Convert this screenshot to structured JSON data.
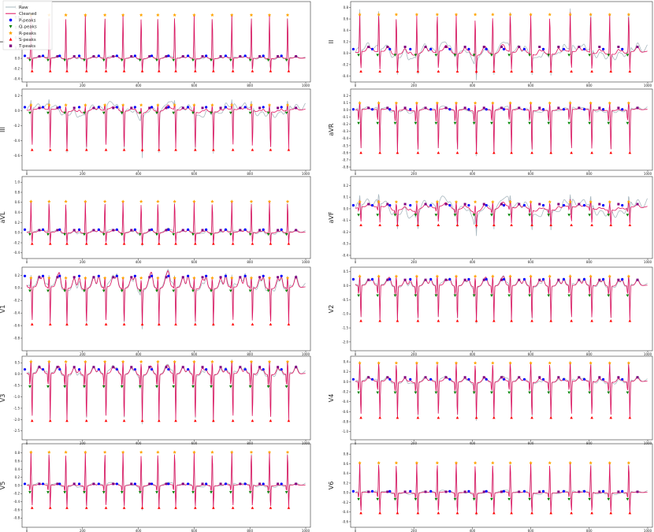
{
  "chart_data": {
    "type": "line",
    "beats_x": [
      15,
      80,
      140,
      210,
      280,
      345,
      410,
      470,
      530,
      600,
      665,
      735,
      805,
      870,
      935
    ],
    "legend": {
      "placement": "top-left",
      "entries": [
        {
          "label": "Raw",
          "color": "#a9b8bf",
          "kind": "line"
        },
        {
          "label": "Cleaned",
          "color": "#e0115f",
          "kind": "line"
        },
        {
          "label": "P-peaks",
          "color": "#0000ff",
          "kind": "marker",
          "shape": "circle"
        },
        {
          "label": "Q-peaks",
          "color": "#008000",
          "kind": "marker",
          "shape": "triangle-down"
        },
        {
          "label": "R-peaks",
          "color": "#ffa500",
          "kind": "marker",
          "shape": "star"
        },
        {
          "label": "S-peaks",
          "color": "#ff0000",
          "kind": "marker",
          "shape": "triangle-up"
        },
        {
          "label": "T-peaks",
          "color": "#800080",
          "kind": "marker",
          "shape": "square"
        }
      ]
    },
    "xlim": [
      0,
      1000
    ],
    "xticks": [
      "0",
      "200",
      "400",
      "600",
      "800",
      "1000"
    ],
    "panels": [
      {
        "lead": "I",
        "ylim": [
          -0.4,
          1.05
        ],
        "yticks": [
          "-0.4",
          "-0.2",
          "0.0",
          "0.2",
          "0.4",
          "0.6",
          "0.8",
          "1.0"
        ],
        "r": 0.85,
        "s": -0.25,
        "p": 0.04,
        "t": 0.03,
        "q": -0.05,
        "noise": 0.02
      },
      {
        "lead": "II",
        "ylim": [
          -0.45,
          0.85
        ],
        "yticks": [
          "-0.4",
          "-0.2",
          "0.0",
          "0.2",
          "0.4",
          "0.6",
          "0.8"
        ],
        "r": 0.68,
        "s": -0.32,
        "p": 0.06,
        "t": 0.1,
        "q": -0.05,
        "noise": 0.1
      },
      {
        "lead": "III",
        "ylim": [
          -0.75,
          0.25
        ],
        "yticks": [
          "-0.6",
          "-0.4",
          "-0.2",
          "0.0",
          "0.2"
        ],
        "r": 0.08,
        "s": -0.52,
        "p": 0.04,
        "t": 0.03,
        "q": -0.02,
        "noise": 0.07
      },
      {
        "lead": "aVR",
        "ylim": [
          -0.8,
          0.25
        ],
        "yticks": [
          "-0.8",
          "-0.7",
          "-0.6",
          "-0.5",
          "-0.4",
          "-0.3",
          "-0.2",
          "-0.1",
          "0.0",
          "0.1",
          "0.2"
        ],
        "r": 0.1,
        "s": -0.6,
        "p": 0.0,
        "t": 0.02,
        "q": -0.65,
        "noise": 0.03
      },
      {
        "lead": "aVL",
        "ylim": [
          -0.45,
          1.05
        ],
        "yticks": [
          "-0.4",
          "-0.2",
          "0.0",
          "0.2",
          "0.4",
          "0.6",
          "0.8",
          "1.0"
        ],
        "r": 0.62,
        "s": -0.22,
        "p": 0.05,
        "t": 0.04,
        "q": -0.05,
        "noise": 0.03
      },
      {
        "lead": "aVF",
        "ylim": [
          -0.4,
          0.25
        ],
        "yticks": [
          "-0.4",
          "-0.3",
          "-0.2",
          "-0.1",
          "0.0",
          "0.1",
          "0.2"
        ],
        "r": 0.06,
        "s": -0.14,
        "p": 0.02,
        "t": 0.03,
        "q": -0.13,
        "noise": 0.06
      },
      {
        "lead": "V1",
        "ylim": [
          -0.95,
          0.28
        ],
        "yticks": [
          "-0.8",
          "-0.6",
          "-0.4",
          "-0.2",
          "0.0",
          "0.2"
        ],
        "r": 0.16,
        "s": -0.58,
        "p": 0.18,
        "t": 0.16,
        "q": -0.1,
        "noise": 0.05
      },
      {
        "lead": "V2",
        "ylim": [
          -2.2,
          0.55
        ],
        "yticks": [
          "-2.0",
          "-1.5",
          "-1.0",
          "-0.5",
          "0.0",
          "0.5"
        ],
        "r": 0.34,
        "s": -1.25,
        "p": 0.22,
        "t": 0.2,
        "q": -1.3,
        "noise": 0.06
      },
      {
        "lead": "V3",
        "ylim": [
          -2.75,
          0.65
        ],
        "yticks": [
          "-2.5",
          "-2.0",
          "-1.5",
          "-1.0",
          "-0.5",
          "0.0",
          "0.5"
        ],
        "r": 0.55,
        "s": -2.05,
        "p": 0.2,
        "t": 0.3,
        "q": -2.1,
        "noise": 0.1
      },
      {
        "lead": "V4",
        "ylim": [
          -1.1,
          0.45
        ],
        "yticks": [
          "-1.0",
          "-0.8",
          "-0.6",
          "-0.4",
          "-0.2",
          "0.0",
          "0.2",
          "0.4"
        ],
        "r": 0.38,
        "s": -0.72,
        "p": 0.04,
        "t": 0.08,
        "q": -0.78,
        "noise": 0.04
      },
      {
        "lead": "V5",
        "ylim": [
          -0.95,
          0.95
        ],
        "yticks": [
          "-0.8",
          "-0.6",
          "-0.4",
          "-0.2",
          "0.0",
          "0.2",
          "0.4",
          "0.6",
          "0.8"
        ],
        "r": 0.82,
        "s": -0.55,
        "p": 0.03,
        "t": 0.03,
        "q": -0.58,
        "noise": 0.04
      },
      {
        "lead": "V6",
        "ylim": [
          -0.65,
          0.95
        ],
        "yticks": [
          "-0.6",
          "-0.4",
          "-0.2",
          "0.0",
          "0.2",
          "0.4",
          "0.6",
          "0.8"
        ],
        "r": 0.62,
        "s": -0.42,
        "p": 0.02,
        "t": 0.01,
        "q": -0.45,
        "noise": 0.03
      }
    ]
  }
}
